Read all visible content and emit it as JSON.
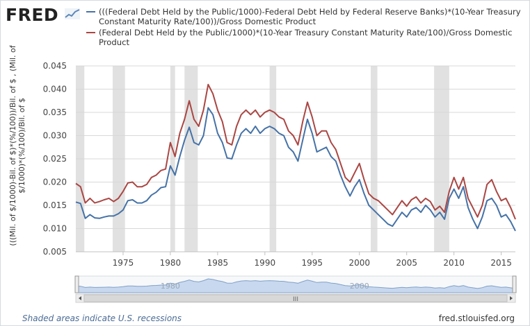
{
  "brand": {
    "logo_text": "FRED",
    "logo_icon": "trend-line-icon"
  },
  "colors": {
    "blue": "#4572a7",
    "red": "#aa4643",
    "recession": "#e1e1e1",
    "navigator_fill": "#c8d8ee"
  },
  "footer": {
    "note": "Shaded areas indicate U.S. recessions",
    "source": "fred.stlouisfed.org"
  },
  "navigator": {
    "labels": [
      "1980",
      "2000"
    ],
    "handle_glyph": "III"
  },
  "chart_data": {
    "type": "line",
    "title": "",
    "xlabel": "",
    "ylabel": "(((Mil. of $/1000)-Bil. of $)*(%/100))/Bil. of $ , (Mil. of $/1000)*(%/100)/Bil. of $",
    "xlim": [
      1970.0,
      2016.5
    ],
    "ylim": [
      0.005,
      0.045
    ],
    "x_ticks": [
      1975,
      1980,
      1985,
      1990,
      1995,
      2000,
      2005,
      2010,
      2015
    ],
    "x_tick_labels": [
      "1975",
      "1980",
      "1985",
      "1990",
      "1995",
      "2000",
      "2005",
      "2010",
      "2015"
    ],
    "y_ticks": [
      0.005,
      0.01,
      0.015,
      0.02,
      0.025,
      0.03,
      0.035,
      0.04,
      0.045
    ],
    "y_tick_labels": [
      "0.005",
      "0.010",
      "0.015",
      "0.020",
      "0.025",
      "0.030",
      "0.035",
      "0.040",
      "0.045"
    ],
    "grid": true,
    "legend_position": "top",
    "recessions": [
      [
        1970.0,
        1970.9
      ],
      [
        1973.9,
        1975.2
      ],
      [
        1980.0,
        1980.5
      ],
      [
        1981.5,
        1982.9
      ],
      [
        1990.5,
        1991.2
      ],
      [
        2001.2,
        2001.9
      ],
      [
        2007.9,
        2009.5
      ]
    ],
    "series": [
      {
        "name": "(((Federal Debt Held by the Public/1000)-Federal Debt Held by Federal Reserve Banks)*(10-Year Treasury Constant Maturity Rate/100))/Gross Domestic Product",
        "color": "#4572a7",
        "x": [
          1970.0,
          1970.5,
          1971.0,
          1971.5,
          1972.0,
          1972.5,
          1973.0,
          1973.5,
          1974.0,
          1974.5,
          1975.0,
          1975.5,
          1976.0,
          1976.5,
          1977.0,
          1977.5,
          1978.0,
          1978.5,
          1979.0,
          1979.5,
          1980.0,
          1980.5,
          1981.0,
          1981.5,
          1982.0,
          1982.5,
          1983.0,
          1983.5,
          1984.0,
          1984.5,
          1985.0,
          1985.5,
          1986.0,
          1986.5,
          1987.0,
          1987.5,
          1988.0,
          1988.5,
          1989.0,
          1989.5,
          1990.0,
          1990.5,
          1991.0,
          1991.5,
          1992.0,
          1992.5,
          1993.0,
          1993.5,
          1994.0,
          1994.5,
          1995.0,
          1995.5,
          1996.0,
          1996.5,
          1997.0,
          1997.5,
          1998.0,
          1998.5,
          1999.0,
          1999.5,
          2000.0,
          2000.5,
          2001.0,
          2001.5,
          2002.0,
          2002.5,
          2003.0,
          2003.5,
          2004.0,
          2004.5,
          2005.0,
          2005.5,
          2006.0,
          2006.5,
          2007.0,
          2007.5,
          2008.0,
          2008.5,
          2009.0,
          2009.5,
          2010.0,
          2010.5,
          2011.0,
          2011.5,
          2012.0,
          2012.5,
          2013.0,
          2013.5,
          2014.0,
          2014.5,
          2015.0,
          2015.5,
          2016.0,
          2016.5
        ],
        "values": [
          0.0157,
          0.0154,
          0.0122,
          0.013,
          0.0123,
          0.0122,
          0.0125,
          0.0127,
          0.0127,
          0.0132,
          0.014,
          0.016,
          0.0162,
          0.0155,
          0.0155,
          0.016,
          0.0172,
          0.0178,
          0.0188,
          0.019,
          0.0235,
          0.0215,
          0.0255,
          0.029,
          0.0318,
          0.0285,
          0.028,
          0.03,
          0.036,
          0.0345,
          0.0305,
          0.0285,
          0.0252,
          0.025,
          0.028,
          0.0305,
          0.0315,
          0.0305,
          0.032,
          0.0305,
          0.0315,
          0.032,
          0.0315,
          0.0305,
          0.03,
          0.0275,
          0.0265,
          0.0245,
          0.029,
          0.0335,
          0.0305,
          0.0265,
          0.027,
          0.0275,
          0.0255,
          0.0245,
          0.0215,
          0.019,
          0.017,
          0.019,
          0.0205,
          0.0175,
          0.015,
          0.014,
          0.013,
          0.012,
          0.011,
          0.0105,
          0.012,
          0.0135,
          0.0125,
          0.014,
          0.0145,
          0.0135,
          0.015,
          0.014,
          0.0125,
          0.0135,
          0.012,
          0.0165,
          0.0185,
          0.0165,
          0.019,
          0.0145,
          0.012,
          0.01,
          0.0125,
          0.016,
          0.0165,
          0.015,
          0.0125,
          0.013,
          0.0115,
          0.0095
        ]
      },
      {
        "name": "(Federal Debt Held by the Public/1000)*(10-Year Treasury Constant Maturity Rate/100)/Gross Domestic Product",
        "color": "#aa4643",
        "x": [
          1970.0,
          1970.5,
          1971.0,
          1971.5,
          1972.0,
          1972.5,
          1973.0,
          1973.5,
          1974.0,
          1974.5,
          1975.0,
          1975.5,
          1976.0,
          1976.5,
          1977.0,
          1977.5,
          1978.0,
          1978.5,
          1979.0,
          1979.5,
          1980.0,
          1980.5,
          1981.0,
          1981.5,
          1982.0,
          1982.5,
          1983.0,
          1983.5,
          1984.0,
          1984.5,
          1985.0,
          1985.5,
          1986.0,
          1986.5,
          1987.0,
          1987.5,
          1988.0,
          1988.5,
          1989.0,
          1989.5,
          1990.0,
          1990.5,
          1991.0,
          1991.5,
          1992.0,
          1992.5,
          1993.0,
          1993.5,
          1994.0,
          1994.5,
          1995.0,
          1995.5,
          1996.0,
          1996.5,
          1997.0,
          1997.5,
          1998.0,
          1998.5,
          1999.0,
          1999.5,
          2000.0,
          2000.5,
          2001.0,
          2001.5,
          2002.0,
          2002.5,
          2003.0,
          2003.5,
          2004.0,
          2004.5,
          2005.0,
          2005.5,
          2006.0,
          2006.5,
          2007.0,
          2007.5,
          2008.0,
          2008.5,
          2009.0,
          2009.5,
          2010.0,
          2010.5,
          2011.0,
          2011.5,
          2012.0,
          2012.5,
          2013.0,
          2013.5,
          2014.0,
          2014.5,
          2015.0,
          2015.5,
          2016.0,
          2016.5
        ],
        "values": [
          0.0197,
          0.019,
          0.0155,
          0.0165,
          0.0155,
          0.0158,
          0.0162,
          0.0165,
          0.0158,
          0.0165,
          0.018,
          0.0198,
          0.02,
          0.019,
          0.019,
          0.0195,
          0.021,
          0.0215,
          0.0225,
          0.0228,
          0.0285,
          0.0255,
          0.0305,
          0.0335,
          0.0375,
          0.0335,
          0.032,
          0.0355,
          0.041,
          0.039,
          0.0355,
          0.033,
          0.0285,
          0.028,
          0.032,
          0.0345,
          0.0355,
          0.0345,
          0.0355,
          0.034,
          0.035,
          0.0355,
          0.035,
          0.034,
          0.0335,
          0.031,
          0.03,
          0.028,
          0.033,
          0.0372,
          0.034,
          0.03,
          0.031,
          0.031,
          0.0285,
          0.027,
          0.024,
          0.021,
          0.02,
          0.022,
          0.024,
          0.0205,
          0.0175,
          0.0165,
          0.016,
          0.015,
          0.014,
          0.013,
          0.0145,
          0.016,
          0.0148,
          0.0162,
          0.0168,
          0.0155,
          0.0165,
          0.0158,
          0.014,
          0.0148,
          0.0135,
          0.018,
          0.021,
          0.0185,
          0.021,
          0.0165,
          0.0145,
          0.0125,
          0.015,
          0.0195,
          0.0205,
          0.018,
          0.016,
          0.0165,
          0.0145,
          0.012
        ]
      }
    ]
  }
}
